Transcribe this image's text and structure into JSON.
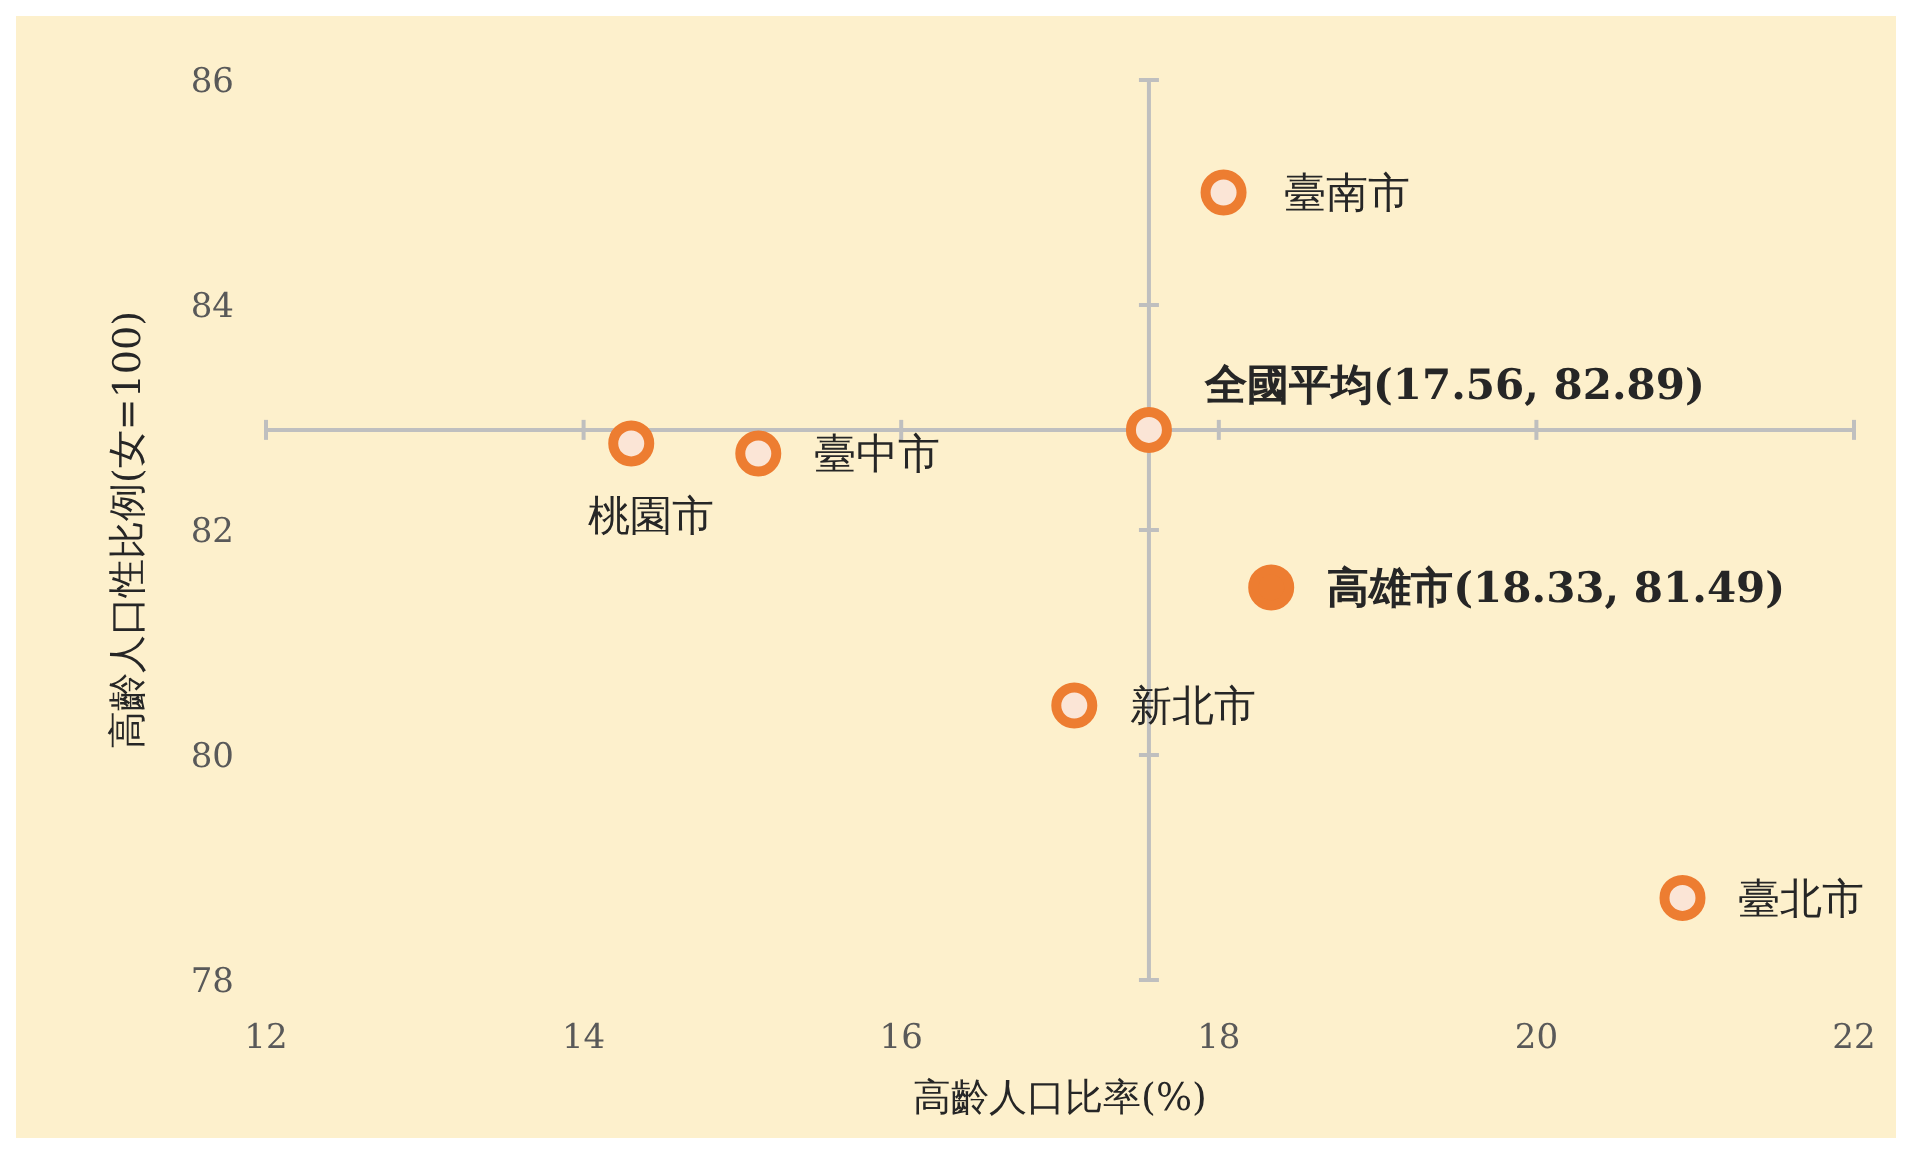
{
  "chart_data": {
    "type": "scatter",
    "xlabel": "高齡人口比率(%)",
    "ylabel": "高齡人口性比例(女=100)",
    "xlim": [
      12,
      22
    ],
    "xticks": [
      12,
      14,
      16,
      18,
      20,
      22
    ],
    "ylim": [
      78,
      86
    ],
    "yticks": [
      78,
      80,
      82,
      84,
      86
    ],
    "grid": false,
    "marker": "circle",
    "series": [
      {
        "color": "#ed7d31",
        "x": [
          18.03,
          17.56,
          15.1,
          14.3,
          17.09,
          20.92
        ],
        "values": [
          85.0,
          82.89,
          82.68,
          82.77,
          80.44,
          78.73
        ],
        "colors": [
          "#fbe5d6",
          "#fbe5d6",
          "#fbe5d6",
          "#fbe5d6",
          "#fbe5d6",
          "#fbe5d6"
        ]
      },
      {
        "color": "#ed7d31",
        "x": [
          18.33
        ],
        "values": [
          81.49
        ],
        "colors": [
          "#ed7d31"
        ]
      }
    ],
    "ref_lines": [
      {
        "axis": "x",
        "value": 17.56,
        "color": "#bfbfbf"
      },
      {
        "axis": "y",
        "value": 82.89,
        "color": "#bfbfbf"
      }
    ],
    "annotations": [
      {
        "text": "臺南市",
        "x": 18.03,
        "y": 85.0
      },
      {
        "text": "全國平均(17.56, 82.89)",
        "x": 17.56,
        "y": 82.89
      },
      {
        "text": "臺中市",
        "x": 15.1,
        "y": 82.68
      },
      {
        "text": "桃園市",
        "x": 14.3,
        "y": 82.77
      },
      {
        "text": "高雄市(18.33, 81.49)",
        "x": 18.33,
        "y": 81.49
      },
      {
        "text": "新北市",
        "x": 17.09,
        "y": 80.44
      },
      {
        "text": "臺北市",
        "x": 20.92,
        "y": 78.73
      }
    ]
  }
}
